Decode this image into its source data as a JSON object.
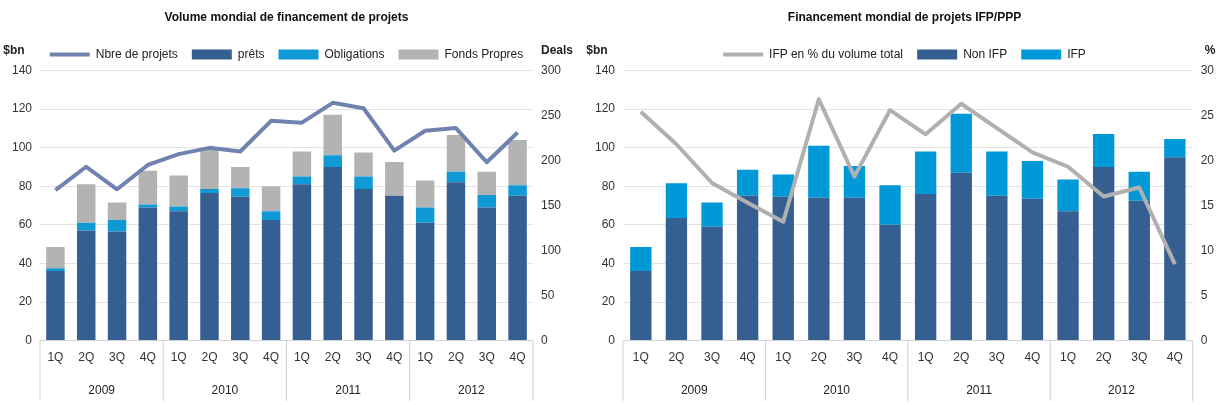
{
  "chart_data": [
    {
      "type": "bar",
      "title": "Volume mondial de financement de projets",
      "ylabel": "$bn",
      "y2label": "Deals",
      "stacked": true,
      "legend": "top",
      "grid": "y",
      "marker": "none",
      "categories": [
        "1Q",
        "2Q",
        "3Q",
        "4Q",
        "1Q",
        "2Q",
        "3Q",
        "4Q",
        "1Q",
        "2Q",
        "3Q",
        "4Q",
        "1Q",
        "2Q",
        "3Q",
        "4Q"
      ],
      "series": [
        {
          "name": "prêts",
          "color": "#365f91",
          "values": [
            36,
            57,
            56.5,
            69,
            67,
            76.5,
            74.5,
            62.5,
            81,
            90,
            78.5,
            75,
            61,
            82,
            69,
            75
          ]
        },
        {
          "name": "Obligations",
          "color": "#0f9ad6",
          "values": [
            1.5,
            4,
            6,
            1.5,
            2.5,
            2,
            4.5,
            4.5,
            4,
            6,
            6.5,
            0,
            8,
            5.5,
            6.5,
            5.5
          ]
        },
        {
          "name": "Fonds Propres",
          "color": "#b3b3b3",
          "values": [
            11,
            20,
            9,
            17.5,
            16,
            20.5,
            11,
            13,
            13,
            21,
            12.5,
            17.5,
            14,
            19,
            12,
            23.5
          ]
        },
        {
          "name": "Nbre de projets",
          "type": "line",
          "axis": "y2",
          "color": "#7083b0",
          "values": [
            167,
            193,
            168,
            195,
            207,
            214,
            210,
            244,
            242,
            264,
            258,
            211,
            233,
            236,
            198,
            231
          ]
        }
      ],
      "ylim": [
        0,
        140
      ],
      "yticks": [
        0,
        20,
        40,
        60,
        80,
        100,
        120,
        140
      ],
      "y2lim": [
        0,
        300
      ],
      "y2ticks": [
        0,
        50,
        100,
        150,
        200,
        250,
        300
      ],
      "annotations": [
        "2009",
        "2010",
        "2011",
        "2012"
      ]
    },
    {
      "type": "bar",
      "title": "Financement mondial de projets IFP/PPP",
      "ylabel": "$bn",
      "y2label": "%",
      "stacked": true,
      "legend": "top",
      "grid": "y",
      "marker": "none",
      "categories": [
        "1Q",
        "2Q",
        "3Q",
        "4Q",
        "1Q",
        "2Q",
        "3Q",
        "4Q",
        "1Q",
        "2Q",
        "3Q",
        "4Q",
        "1Q",
        "2Q",
        "3Q",
        "4Q"
      ],
      "series": [
        {
          "name": "Non IFP",
          "color": "#365f91",
          "values": [
            36,
            63.5,
            59,
            75,
            74.5,
            74,
            74,
            60,
            76,
            87,
            75,
            73.5,
            67,
            90,
            72.5,
            95
          ]
        },
        {
          "name": "IFP",
          "color": "#0099d8",
          "values": [
            12.5,
            18,
            12.5,
            13.5,
            11.5,
            27,
            16.5,
            20.5,
            22,
            30.5,
            23,
            19.5,
            16.5,
            17,
            15,
            9.5
          ]
        },
        {
          "name": "IFP en % du volume total",
          "type": "line",
          "axis": "y2",
          "color": "#b0b0b0",
          "values": [
            25.4,
            21.8,
            17.5,
            15.3,
            13.2,
            26.8,
            18.2,
            25.6,
            22.9,
            26.3,
            23.6,
            20.9,
            19.3,
            16,
            17,
            8.5
          ]
        }
      ],
      "ylim": [
        0,
        140
      ],
      "yticks": [
        0,
        20,
        40,
        60,
        80,
        100,
        120,
        140
      ],
      "y2lim": [
        0,
        30
      ],
      "y2ticks": [
        0,
        5,
        10,
        15,
        20,
        25,
        30
      ],
      "annotations": [
        "2009",
        "2010",
        "2011",
        "2012"
      ]
    }
  ]
}
